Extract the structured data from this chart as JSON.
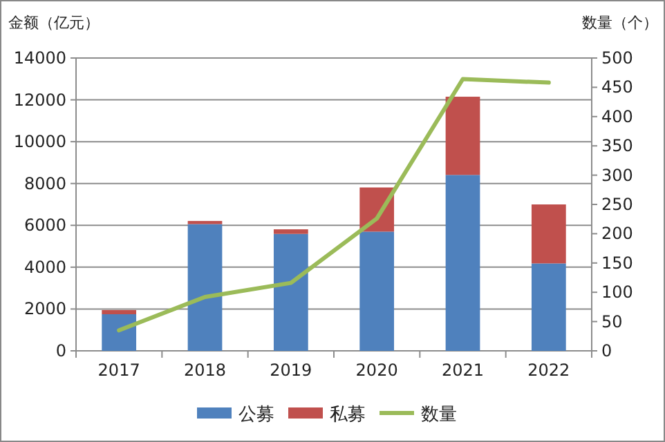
{
  "chart_data": {
    "type": "bar",
    "stacked": true,
    "ylabel": "金额（亿元）",
    "y2label": "数量（个）",
    "categories": [
      "2017",
      "2018",
      "2019",
      "2020",
      "2021",
      "2022"
    ],
    "series": [
      {
        "name": "公募",
        "color": "#4f81bd",
        "values": [
          1750,
          6060,
          5590,
          5700,
          8410,
          4180
        ]
      },
      {
        "name": "私募",
        "color": "#c0504d",
        "values": [
          200,
          150,
          220,
          2110,
          3740,
          2820
        ]
      },
      {
        "name": "数量",
        "type": "line",
        "axis": "y2",
        "color": "#9bbb59",
        "values": [
          35,
          92,
          116,
          226,
          464,
          458
        ]
      }
    ],
    "ylim": [
      0,
      14000
    ],
    "yticks": [
      0,
      2000,
      4000,
      6000,
      8000,
      10000,
      12000,
      14000
    ],
    "y2lim": [
      0,
      500
    ],
    "y2ticks": [
      0,
      50,
      100,
      150,
      200,
      250,
      300,
      350,
      400,
      450,
      500
    ],
    "grid": "y",
    "legend": "bottom",
    "marker": "none",
    "line_style": "solid"
  }
}
